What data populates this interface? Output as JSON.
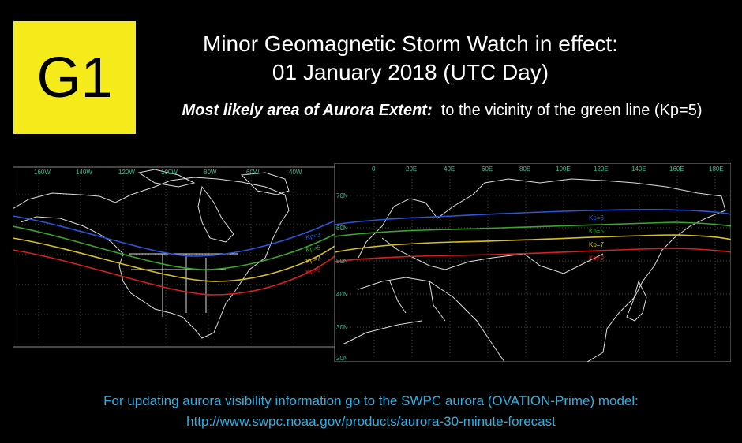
{
  "badge": {
    "label": "G1",
    "color": "#f5eb1a"
  },
  "title": {
    "line1": "Minor Geomagnetic Storm Watch in effect:",
    "line2": "01 January 2018 (UTC Day)"
  },
  "extent": {
    "label": "Most likely area of Aurora Extent:",
    "text": "to the vicinity of the green line (Kp=5)"
  },
  "maps": {
    "west": {
      "lon_labels": [
        "160W",
        "140W",
        "120W",
        "100W",
        "80W",
        "60W",
        "40W"
      ]
    },
    "east": {
      "lon_labels": [
        "0",
        "20E",
        "40E",
        "60E",
        "80E",
        "100E",
        "120E",
        "140E",
        "160E",
        "180E"
      ],
      "lat_labels": [
        "70N",
        "60N",
        "50N",
        "40N",
        "30N",
        "20N"
      ]
    },
    "kp_lines": [
      {
        "label": "Kp=3",
        "color": "#2a55d8"
      },
      {
        "label": "Kp=5",
        "color": "#3aa52a"
      },
      {
        "label": "Kp=7",
        "color": "#d8c020"
      },
      {
        "label": "Kp=9",
        "color": "#d82020"
      }
    ],
    "label_color": "#3fbf8f"
  },
  "footer": {
    "line1": "For updating aurora visibility information go to the SWPC aurora (OVATION-Prime) model:",
    "link": "http://www.swpc.noaa.gov/products/aurora-30-minute-forecast"
  }
}
